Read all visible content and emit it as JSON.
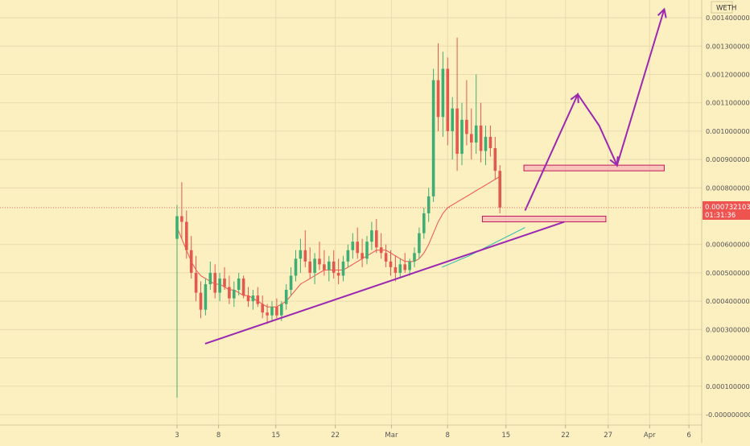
{
  "header": {
    "symbol_label": "WETH"
  },
  "price_tag": {
    "price": "0.0007321030",
    "countdown": "01:31:36"
  },
  "colors": {
    "background": "#fcefc0",
    "grid": "#e8dcae",
    "bull": "#3fae75",
    "bear": "#e25a4f",
    "ma_red": "#ef5350",
    "ma_teal": "#2bbbad",
    "drawing": "#9c27b0",
    "zone_fill": "#f3a3b3",
    "zone_stroke": "#c2185b",
    "axis_text": "#555555",
    "tag": "#ef5350"
  },
  "chart_data": {
    "type": "candlestick",
    "y_axis": {
      "side": "right",
      "range": [
        -2e-05,
        0.00144
      ],
      "ticks": [
        "0.0014000000",
        "0.0013000000",
        "0.0012000000",
        "0.0011000000",
        "0.0010000000",
        "0.0009000000",
        "0.0008000000",
        "0.0006000000",
        "0.0005000000",
        "0.0004000000",
        "0.0003000000",
        "0.0002000000",
        "0.0001000000",
        "-0.0000000000"
      ],
      "tick_values": [
        0.0014,
        0.0013,
        0.0012,
        0.0011,
        0.001,
        0.0009,
        0.0008,
        0.0006,
        0.0005,
        0.0004,
        0.0003,
        0.0002,
        0.0001,
        0.0
      ]
    },
    "x_axis": {
      "range_days": [
        0,
        34.7
      ],
      "tick_labels": [
        "3",
        "8",
        "15",
        "22",
        "Mar",
        "8",
        "15",
        "22",
        "27",
        "Apr",
        "6"
      ],
      "tick_days": [
        0,
        3.7,
        8.8,
        14.1,
        19.1,
        24.1,
        29.3,
        34.6,
        38.4,
        42.1,
        45.6
      ]
    },
    "series": [
      {
        "kind": "candles",
        "ohlc": [
          [
            0.00062,
            0.00074,
            6e-05,
            0.0007
          ],
          [
            0.0007,
            0.00082,
            0.00062,
            0.00068
          ],
          [
            0.00068,
            0.00072,
            0.00055,
            0.00058
          ],
          [
            0.00058,
            0.00063,
            0.00048,
            0.0005
          ],
          [
            0.0005,
            0.00056,
            0.0004,
            0.00043
          ],
          [
            0.00043,
            0.00047,
            0.00034,
            0.00037
          ],
          [
            0.00037,
            0.00048,
            0.00035,
            0.00046
          ],
          [
            0.00046,
            0.00054,
            0.00044,
            0.0005
          ],
          [
            0.0005,
            0.00053,
            0.00041,
            0.00043
          ],
          [
            0.00043,
            0.0005,
            0.0004,
            0.00048
          ],
          [
            0.00048,
            0.00052,
            0.00044,
            0.00045
          ],
          [
            0.00045,
            0.00049,
            0.00039,
            0.00041
          ],
          [
            0.00041,
            0.00047,
            0.00038,
            0.00044
          ],
          [
            0.00044,
            0.0005,
            0.00042,
            0.00048
          ],
          [
            0.00048,
            0.00049,
            0.00041,
            0.00042
          ],
          [
            0.00042,
            0.00045,
            0.00038,
            0.0004
          ],
          [
            0.0004,
            0.00044,
            0.00037,
            0.00042
          ],
          [
            0.00042,
            0.00045,
            0.00038,
            0.00039
          ],
          [
            0.00039,
            0.00042,
            0.00034,
            0.00036
          ],
          [
            0.00036,
            0.00039,
            0.00032,
            0.00035
          ],
          [
            0.00035,
            0.0004,
            0.00033,
            0.00038
          ],
          [
            0.00038,
            0.00041,
            0.00034,
            0.00035
          ],
          [
            0.00035,
            0.0004,
            0.00033,
            0.00039
          ],
          [
            0.00039,
            0.00046,
            0.00037,
            0.00044
          ],
          [
            0.00044,
            0.00052,
            0.00042,
            0.00049
          ],
          [
            0.00049,
            0.00058,
            0.00047,
            0.00055
          ],
          [
            0.00055,
            0.00062,
            0.0005,
            0.00058
          ],
          [
            0.00058,
            0.00065,
            0.00052,
            0.00054
          ],
          [
            0.00054,
            0.00059,
            0.00048,
            0.0005
          ],
          [
            0.0005,
            0.00057,
            0.00046,
            0.00055
          ],
          [
            0.00055,
            0.00061,
            0.00051,
            0.00053
          ],
          [
            0.00053,
            0.00058,
            0.00049,
            0.00051
          ],
          [
            0.00051,
            0.00056,
            0.00047,
            0.00054
          ],
          [
            0.00054,
            0.00058,
            0.00048,
            0.0005
          ],
          [
            0.0005,
            0.00055,
            0.00046,
            0.00049
          ],
          [
            0.00049,
            0.00056,
            0.00047,
            0.00054
          ],
          [
            0.00054,
            0.0006,
            0.00052,
            0.00058
          ],
          [
            0.00058,
            0.00064,
            0.00055,
            0.00061
          ],
          [
            0.00061,
            0.00066,
            0.00055,
            0.00057
          ],
          [
            0.00057,
            0.00062,
            0.00052,
            0.00055
          ],
          [
            0.00055,
            0.00063,
            0.00053,
            0.00061
          ],
          [
            0.00061,
            0.00068,
            0.00058,
            0.00065
          ],
          [
            0.00065,
            0.00069,
            0.00057,
            0.00059
          ],
          [
            0.00059,
            0.00064,
            0.00055,
            0.00057
          ],
          [
            0.00057,
            0.0006,
            0.00052,
            0.00054
          ],
          [
            0.00054,
            0.00058,
            0.00049,
            0.00052
          ],
          [
            0.00052,
            0.00056,
            0.00047,
            0.0005
          ],
          [
            0.0005,
            0.00055,
            0.00048,
            0.00053
          ],
          [
            0.00053,
            0.00057,
            0.0005,
            0.00051
          ],
          [
            0.00051,
            0.00055,
            0.00049,
            0.00054
          ],
          [
            0.00054,
            0.00059,
            0.00052,
            0.00057
          ],
          [
            0.00057,
            0.00066,
            0.00055,
            0.00064
          ],
          [
            0.00064,
            0.00073,
            0.00062,
            0.00071
          ],
          [
            0.00071,
            0.0008,
            0.00068,
            0.00077
          ],
          [
            0.00077,
            0.00122,
            0.00075,
            0.00118
          ],
          [
            0.00118,
            0.00131,
            0.001,
            0.00105
          ],
          [
            0.00105,
            0.00128,
            0.00098,
            0.00122
          ],
          [
            0.00122,
            0.00126,
            0.00095,
            0.001
          ],
          [
            0.001,
            0.00112,
            0.0009,
            0.00108
          ],
          [
            0.00108,
            0.00133,
            0.00086,
            0.00092
          ],
          [
            0.00092,
            0.0011,
            0.00088,
            0.00104
          ],
          [
            0.00104,
            0.00118,
            0.00095,
            0.00099
          ],
          [
            0.00099,
            0.00108,
            0.0009,
            0.00096
          ],
          [
            0.00096,
            0.0012,
            0.00092,
            0.00102
          ],
          [
            0.00102,
            0.0011,
            0.00089,
            0.00093
          ],
          [
            0.00093,
            0.00102,
            0.00088,
            0.00098
          ],
          [
            0.00098,
            0.00102,
            0.00091,
            0.00094
          ],
          [
            0.00094,
            0.00098,
            0.00083,
            0.00086
          ],
          [
            0.00086,
            0.00088,
            0.00071,
            0.00073
          ]
        ]
      },
      {
        "kind": "line",
        "name": "",
        "color_key": "ma_red",
        "values": [
          0.00066,
          0.00062,
          0.00058,
          0.00054,
          0.00051,
          0.00049,
          0.00048,
          0.00047,
          0.00046,
          0.00046,
          0.00045,
          0.00044,
          0.00044,
          0.00043,
          0.00042,
          0.00042,
          0.00041,
          0.0004,
          0.00039,
          0.00038,
          0.00038,
          0.00038,
          0.00039,
          0.0004,
          0.00042,
          0.00044,
          0.00046,
          0.00047,
          0.00048,
          0.00049,
          0.0005,
          0.00051,
          0.00051,
          0.00051,
          0.00051,
          0.00051,
          0.00052,
          0.00053,
          0.00054,
          0.00055,
          0.00056,
          0.00057,
          0.00058,
          0.00058,
          0.00058,
          0.00057,
          0.00056,
          0.00055,
          0.00054,
          0.00054,
          0.00054,
          0.00055,
          0.00057,
          0.0006,
          0.00064,
          0.00068,
          0.00071,
          0.00073,
          0.00074,
          0.00075,
          0.00076,
          0.00077,
          0.00078,
          0.00079,
          0.0008,
          0.00081,
          0.00082,
          0.00083,
          0.00084
        ]
      },
      {
        "kind": "line",
        "name": "",
        "color_key": "ma_teal",
        "x_days": [
          23.6,
          26.0,
          29.0,
          31.0
        ],
        "values": [
          0.00052,
          0.00056,
          0.00062,
          0.00066
        ]
      }
    ],
    "drawings": {
      "support_line": {
        "from": [
          2.5,
          0.00025
        ],
        "to": [
          34.5,
          0.00068
        ]
      },
      "zones": [
        {
          "x0": 27.2,
          "x1": 38.2,
          "y0": 0.00068,
          "y1": 0.0007
        },
        {
          "x0": 30.9,
          "x1": 43.4,
          "y0": 0.00086,
          "y1": 0.00088
        }
      ],
      "projection_path": [
        [
          31.0,
          0.00072
        ],
        [
          35.7,
          0.00113
        ],
        [
          37.6,
          0.00102
        ],
        [
          39.2,
          0.00088
        ],
        [
          43.4,
          0.00143
        ]
      ],
      "arrow_tips": [
        [
          35.7,
          0.00113
        ],
        [
          39.2,
          0.00088
        ],
        [
          43.4,
          0.00143
        ]
      ]
    }
  }
}
